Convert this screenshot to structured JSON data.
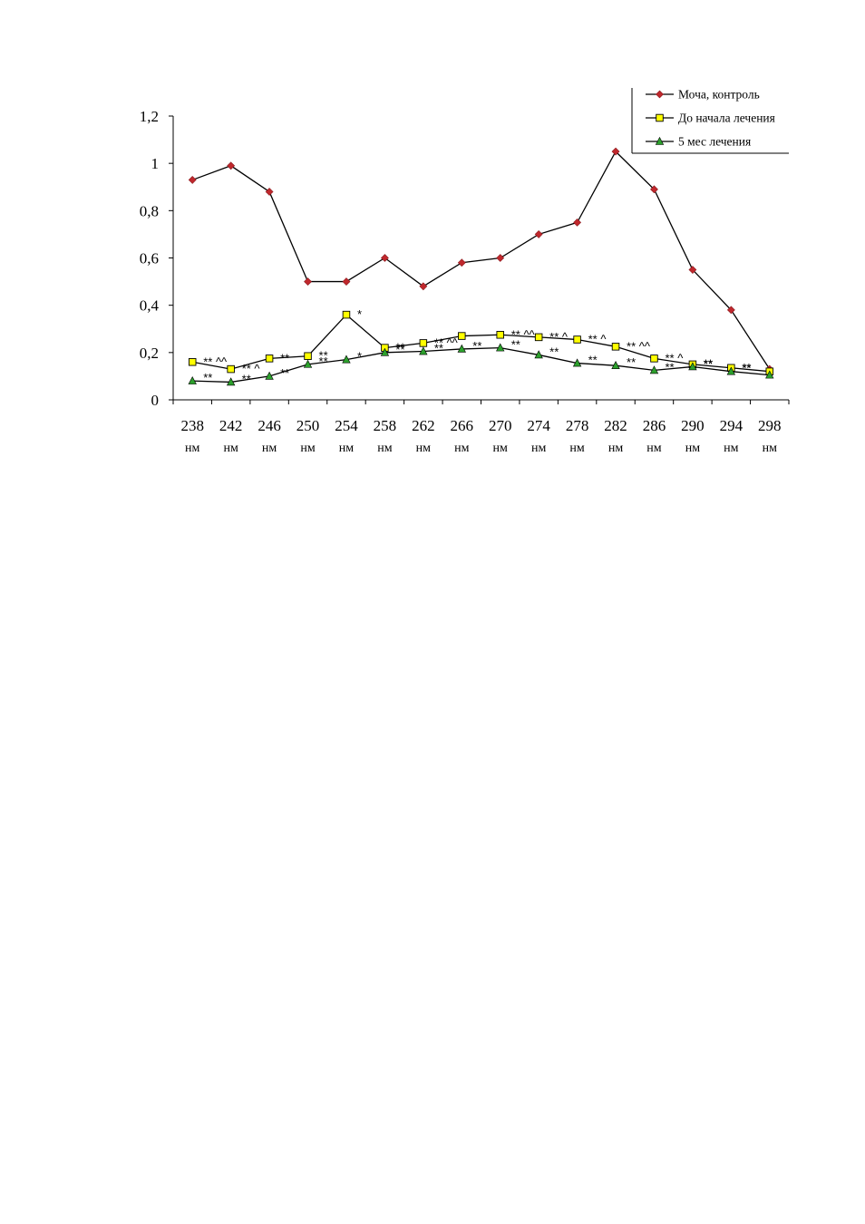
{
  "chart_data": {
    "type": "line",
    "title": "",
    "xlabel": "",
    "ylabel": "",
    "categories": [
      "238",
      "242",
      "246",
      "250",
      "254",
      "258",
      "262",
      "266",
      "270",
      "274",
      "278",
      "282",
      "286",
      "290",
      "294",
      "298"
    ],
    "category_unit": "нм",
    "ylim": [
      0,
      1.2
    ],
    "yticks": [
      "0",
      "0,2",
      "0,4",
      "0,6",
      "0,8",
      "1",
      "1,2"
    ],
    "ytick_values": [
      0,
      0.2,
      0.4,
      0.6,
      0.8,
      1.0,
      1.2
    ],
    "grid": false,
    "legend_position": "top-right",
    "series": [
      {
        "name": "Моча, контроль",
        "marker": "diamond",
        "color": "#c0282d",
        "values": [
          0.93,
          0.99,
          0.88,
          0.5,
          0.5,
          0.6,
          0.48,
          0.58,
          0.6,
          0.7,
          0.75,
          1.05,
          0.89,
          0.55,
          0.38,
          0.13
        ]
      },
      {
        "name": "До начала лечения",
        "marker": "square",
        "color": "#ffff00",
        "values": [
          0.16,
          0.13,
          0.175,
          0.185,
          0.36,
          0.22,
          0.24,
          0.27,
          0.275,
          0.265,
          0.255,
          0.225,
          0.175,
          0.15,
          0.135,
          0.12
        ]
      },
      {
        "name": "5 мес лечения",
        "marker": "triangle",
        "color": "#2ca02c",
        "values": [
          0.08,
          0.075,
          0.1,
          0.15,
          0.17,
          0.2,
          0.205,
          0.215,
          0.22,
          0.19,
          0.155,
          0.145,
          0.125,
          0.14,
          0.12,
          0.105
        ]
      }
    ],
    "annotations": [
      {
        "text": "** ^^",
        "series": 1,
        "index": 0
      },
      {
        "text": "** ^",
        "series": 1,
        "index": 1
      },
      {
        "text": "**",
        "series": 1,
        "index": 2
      },
      {
        "text": "**",
        "series": 1,
        "index": 3
      },
      {
        "text": "*",
        "series": 1,
        "index": 4
      },
      {
        "text": "**",
        "series": 1,
        "index": 5
      },
      {
        "text": "** ^^",
        "series": 1,
        "index": 6
      },
      {
        "text": "** ^^",
        "series": 1,
        "index": 8
      },
      {
        "text": "** ^",
        "series": 1,
        "index": 9
      },
      {
        "text": "** ^",
        "series": 1,
        "index": 10
      },
      {
        "text": "** ^^",
        "series": 1,
        "index": 11
      },
      {
        "text": "** ^",
        "series": 1,
        "index": 12
      },
      {
        "text": "**",
        "series": 1,
        "index": 13
      },
      {
        "text": "**",
        "series": 1,
        "index": 14
      },
      {
        "text": "**",
        "series": 2,
        "index": 0
      },
      {
        "text": "**",
        "series": 2,
        "index": 1
      },
      {
        "text": "**",
        "series": 2,
        "index": 2
      },
      {
        "text": "**",
        "series": 2,
        "index": 3
      },
      {
        "text": "*",
        "series": 2,
        "index": 4
      },
      {
        "text": "**",
        "series": 2,
        "index": 5
      },
      {
        "text": "**",
        "series": 2,
        "index": 6
      },
      {
        "text": "**",
        "series": 2,
        "index": 7
      },
      {
        "text": "**",
        "series": 2,
        "index": 8
      },
      {
        "text": "**",
        "series": 2,
        "index": 9
      },
      {
        "text": "**",
        "series": 2,
        "index": 10
      },
      {
        "text": "**",
        "series": 2,
        "index": 11
      },
      {
        "text": "**",
        "series": 2,
        "index": 12
      },
      {
        "text": "**",
        "series": 2,
        "index": 13
      },
      {
        "text": "**",
        "series": 2,
        "index": 14
      }
    ]
  }
}
